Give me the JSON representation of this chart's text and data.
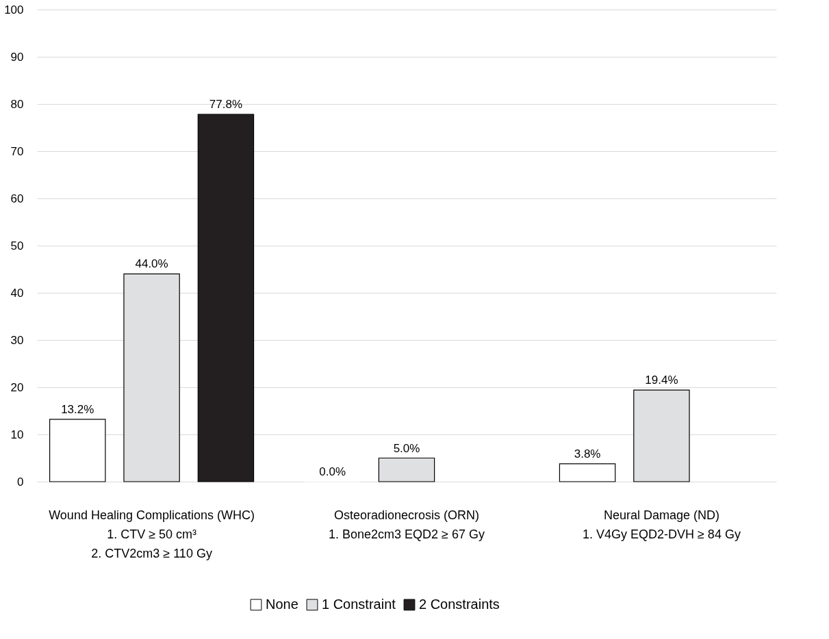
{
  "chart_data": {
    "type": "bar",
    "categories": [
      "Wound Healing Complications (WHC)\n1.  CTV ≥ 50 cm³\n2. CTV2cm3 ≥ 110 Gy",
      "Osteoradionecrosis (ORN)\n1.  Bone2cm3 EQD2 ≥ 67 Gy",
      "Neural Damage (ND)\n1.  V4Gy EQD2-DVH ≥ 84 Gy"
    ],
    "series": [
      {
        "name": "None",
        "color": "#ffffff",
        "values": [
          13.2,
          0.0,
          3.8
        ],
        "value_labels": [
          "13.2%",
          "0.0%",
          "3.8%"
        ]
      },
      {
        "name": "1 Constraint",
        "color": "#dfe0e2",
        "values": [
          44.0,
          5.0,
          19.4
        ],
        "value_labels": [
          "44.0%",
          "5.0%",
          "19.4%"
        ]
      },
      {
        "name": "2 Constraints",
        "color": "#231f20",
        "values": [
          77.8,
          null,
          null
        ],
        "value_labels": [
          "77.8%",
          null,
          null
        ]
      }
    ],
    "ylim": [
      0,
      100
    ],
    "yticks": [
      0,
      10,
      20,
      30,
      40,
      50,
      60,
      70,
      80,
      90,
      100
    ],
    "grid": "y",
    "legend": "bottom"
  }
}
